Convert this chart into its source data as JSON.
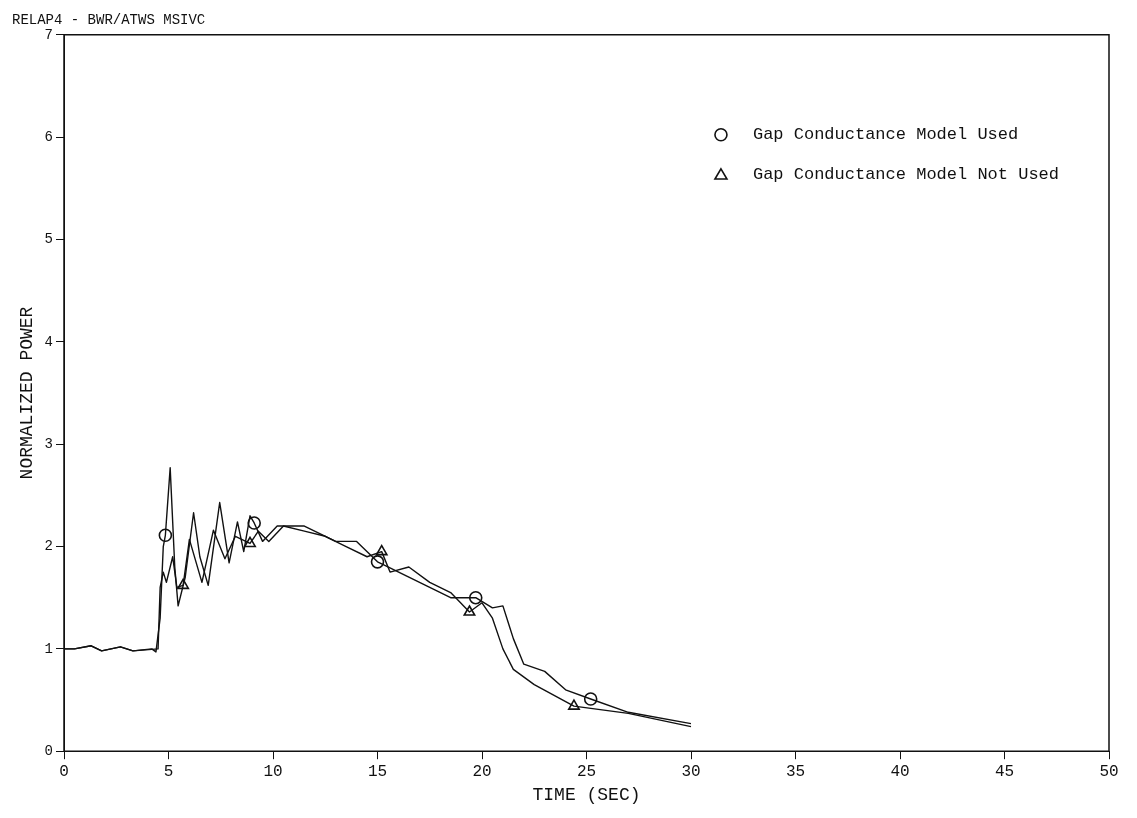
{
  "chart_data": {
    "type": "line",
    "title": "RELAP4 - BWR/ATWS MSIVC",
    "xlabel": "TIME (SEC)",
    "ylabel": "NORMALIZED POWER",
    "xlim": [
      0,
      50
    ],
    "xticks": [
      0,
      5,
      10,
      15,
      20,
      25,
      30,
      35,
      40,
      45,
      50
    ],
    "ylim": [
      0,
      7
    ],
    "yticks": [
      0,
      1,
      2,
      3,
      4,
      5,
      6,
      7
    ],
    "grid": false,
    "legend": "top right",
    "line_style": "solid",
    "series": [
      {
        "color": "#111111",
        "marker": "none",
        "x": [
          0,
          0.5,
          1.3,
          1.8,
          2.7,
          3.3,
          4.2,
          4.4,
          4.6,
          4.75,
          4.85,
          5.08,
          5.3,
          5.46,
          5.8,
          6.2,
          6.5,
          6.9,
          7.45,
          7.9,
          8.3,
          8.6,
          8.9,
          9.1,
          9.5,
          10.2,
          11.5,
          13,
          14,
          15,
          15.5,
          16.5,
          17.5,
          18.5,
          19.7,
          20.5,
          21,
          21.5,
          22,
          23,
          24,
          25.2,
          27,
          30
        ],
        "values": [
          1,
          1,
          1.03,
          0.98,
          1.02,
          0.98,
          1,
          0.97,
          1.3,
          2,
          2.11,
          2.77,
          1.8,
          1.42,
          1.7,
          2.33,
          1.9,
          1.62,
          2.43,
          1.84,
          2.24,
          1.95,
          2.3,
          2.23,
          2.05,
          2.2,
          2.2,
          2.05,
          2.05,
          1.85,
          1.8,
          1.7,
          1.6,
          1.5,
          1.5,
          1.4,
          1.42,
          1.1,
          0.85,
          0.78,
          0.6,
          0.51,
          0.38,
          0.27
        ]
      },
      {
        "color": "#111111",
        "marker": "none",
        "x": [
          0,
          0.5,
          1.3,
          1.8,
          2.7,
          3.3,
          4.5,
          4.6,
          4.75,
          4.9,
          5.2,
          5.4,
          5.7,
          6,
          6.6,
          7.15,
          7.7,
          8.2,
          8.9,
          9.3,
          9.8,
          10.5,
          11.5,
          12.5,
          13.5,
          14.5,
          15.2,
          15.6,
          16.5,
          17.5,
          18.5,
          19.4,
          20,
          20.5,
          21,
          21.5,
          22.5,
          24.4,
          27,
          30
        ],
        "values": [
          1,
          1,
          1.03,
          0.98,
          1.02,
          0.98,
          1,
          1.6,
          1.75,
          1.65,
          1.9,
          1.6,
          1.62,
          2.07,
          1.65,
          2.16,
          1.88,
          2.1,
          2.03,
          2.15,
          2.05,
          2.2,
          2.15,
          2.1,
          2,
          1.9,
          1.95,
          1.75,
          1.8,
          1.65,
          1.55,
          1.36,
          1.45,
          1.3,
          1,
          0.8,
          0.65,
          0.44,
          0.37,
          0.24
        ]
      },
      {
        "type": "scatter",
        "name": "Gap Conductance Model Used",
        "color": "#111111",
        "marker": "circle",
        "x": [
          4.85,
          9.1,
          15,
          19.7,
          25.2
        ],
        "values": [
          2.11,
          2.23,
          1.85,
          1.5,
          0.51
        ]
      },
      {
        "type": "scatter",
        "name": "Gap Conductance Model Not Used",
        "color": "#111111",
        "marker": "triangle",
        "x": [
          5.7,
          8.9,
          15.2,
          19.4,
          24.4
        ],
        "values": [
          1.62,
          2.03,
          1.95,
          1.36,
          0.44
        ]
      }
    ]
  }
}
